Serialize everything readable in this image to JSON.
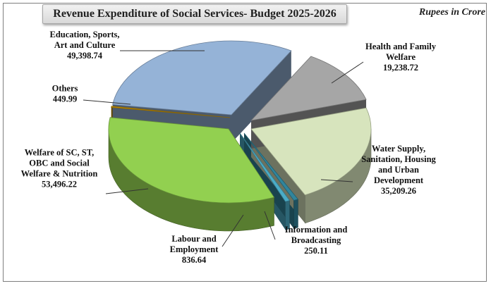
{
  "chart_data": {
    "type": "pie",
    "title": "Revenue Expenditure of Social Services- Budget 2025-2026",
    "units": "Rupees in Crore",
    "colors": {
      "education": "#95b3d7",
      "health": "#a6a6a6",
      "water": "#d7e4bd",
      "info": "#31859c",
      "labour": "#4bacc6",
      "welfare": "#92d050",
      "others": "#c79000"
    },
    "slices": [
      {
        "id": "education",
        "label_lines": [
          "Education, Sports,",
          "Art and  Culture"
        ],
        "value_text": "49,398.74",
        "value": 49398.74
      },
      {
        "id": "health",
        "label_lines": [
          "Health and Family",
          "Welfare"
        ],
        "value_text": "19,238.72",
        "value": 19238.72
      },
      {
        "id": "water",
        "label_lines": [
          "Water Supply,",
          "Sanitation, Housing",
          "and Urban",
          "Development"
        ],
        "value_text": "35,209.26",
        "value": 35209.26
      },
      {
        "id": "info",
        "label_lines": [
          "Information and",
          "Broadcasting"
        ],
        "value_text": "250.11",
        "value": 250.11
      },
      {
        "id": "labour",
        "label_lines": [
          "Labour and",
          "Employment"
        ],
        "value_text": "836.64",
        "value": 836.64
      },
      {
        "id": "welfare",
        "label_lines": [
          "Welfare of SC, ST,",
          "OBC and Social",
          "Welfare & Nutrition"
        ],
        "value_text": "53,496.22",
        "value": 53496.22
      },
      {
        "id": "others",
        "label_lines": [
          "Others"
        ],
        "value_text": "449.99",
        "value": 449.99
      }
    ]
  }
}
